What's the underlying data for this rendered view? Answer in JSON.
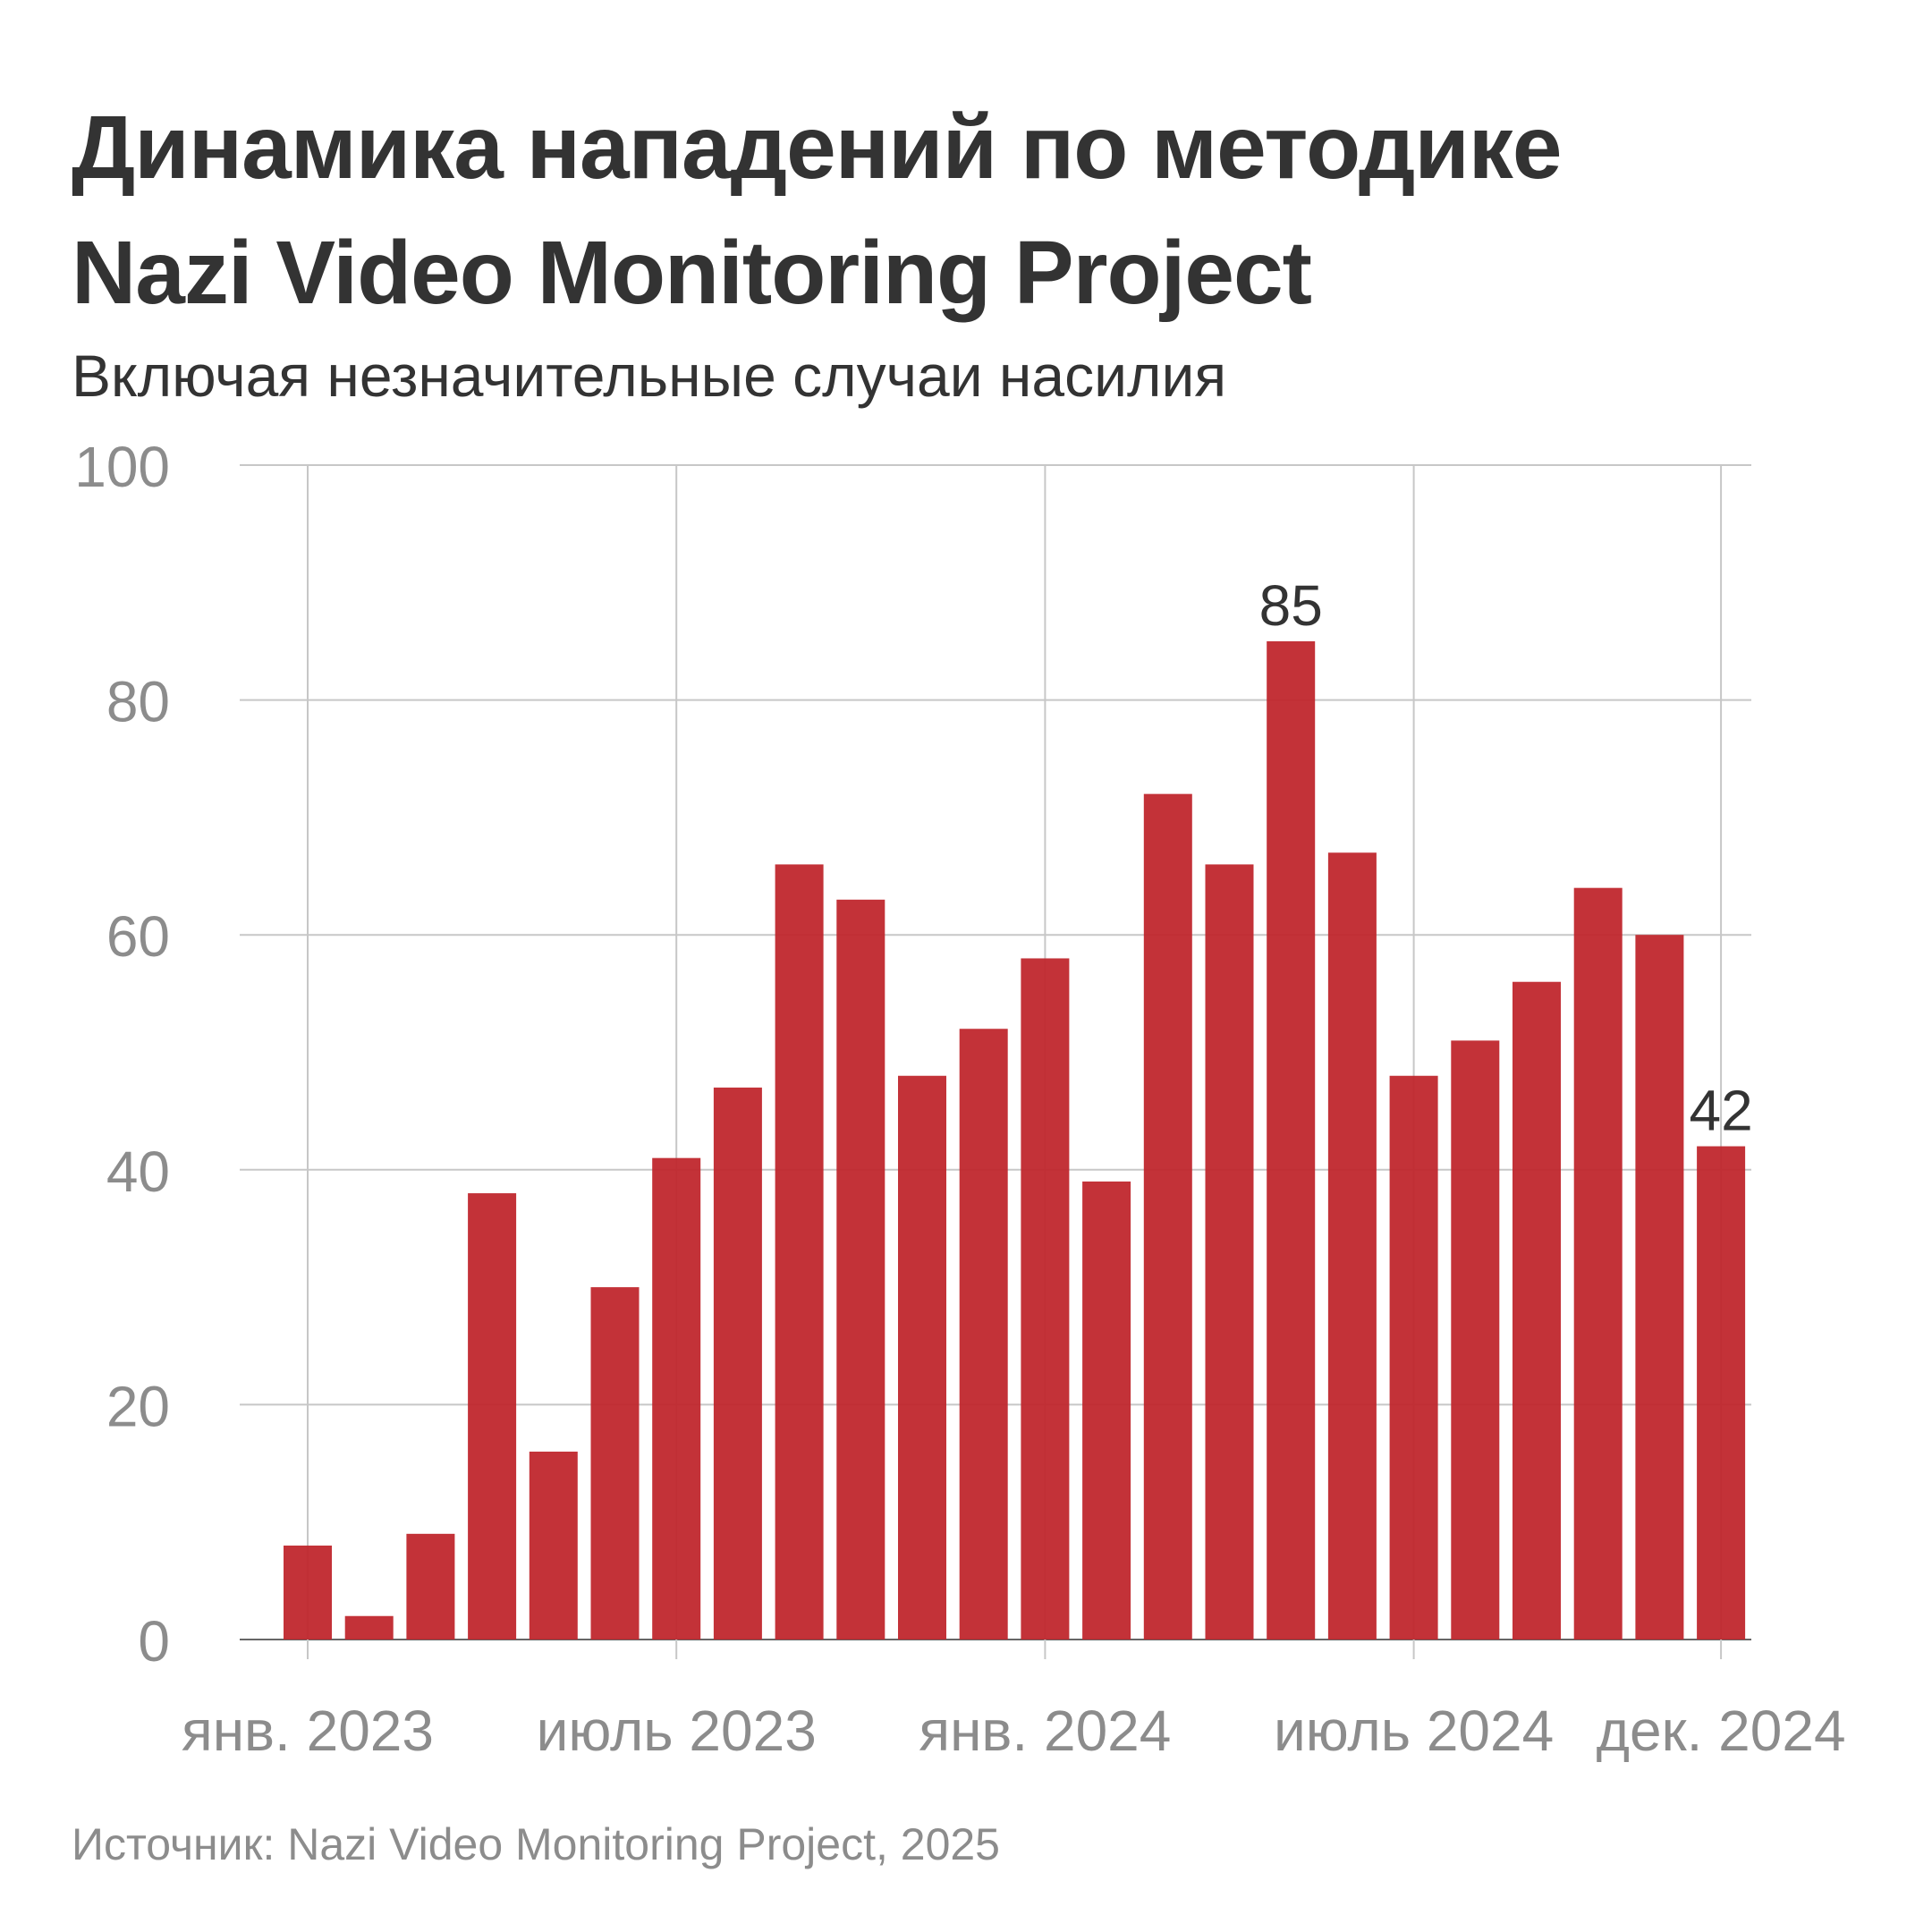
{
  "header": {
    "title_line1": "Динамика нападений по методике",
    "title_line2": "Nazi Video Monitoring Project",
    "subtitle": "Включая незначительные случаи насилия"
  },
  "footer": {
    "source": "Источник: Nazi Video Monitoring Project, 2025"
  },
  "colors": {
    "bar": "#c0272d",
    "grid": "#c7c7c7",
    "axis_text": "#8c8c8c",
    "label_text": "#333333"
  },
  "chart_data": {
    "type": "bar",
    "title": "Динамика нападений по методике Nazi Video Monitoring Project",
    "subtitle": "Включая незначительные случаи насилия",
    "xlabel": "",
    "ylabel": "",
    "ylim": [
      0,
      100
    ],
    "yticks": [
      0,
      20,
      40,
      60,
      80,
      100
    ],
    "grid": true,
    "categories": [
      "2023-01",
      "2023-02",
      "2023-03",
      "2023-04",
      "2023-05",
      "2023-06",
      "2023-07",
      "2023-08",
      "2023-09",
      "2023-10",
      "2023-11",
      "2023-12",
      "2024-01",
      "2024-02",
      "2024-03",
      "2024-04",
      "2024-05",
      "2024-06",
      "2024-07",
      "2024-08",
      "2024-09",
      "2024-10",
      "2024-11",
      "2024-12"
    ],
    "values": [
      8,
      2,
      9,
      38,
      16,
      30,
      41,
      47,
      66,
      63,
      48,
      52,
      58,
      39,
      72,
      66,
      85,
      67,
      48,
      51,
      56,
      64,
      60,
      42
    ],
    "x_tick_labels": [
      {
        "index": 0,
        "label": "янв. 2023"
      },
      {
        "index": 6,
        "label": "июль 2023"
      },
      {
        "index": 12,
        "label": "янв. 2024"
      },
      {
        "index": 18,
        "label": "июль 2024"
      },
      {
        "index": 23,
        "label": "дек. 2024"
      }
    ],
    "annotations": [
      {
        "index": 16,
        "text": "85"
      },
      {
        "index": 23,
        "text": "42"
      }
    ]
  }
}
